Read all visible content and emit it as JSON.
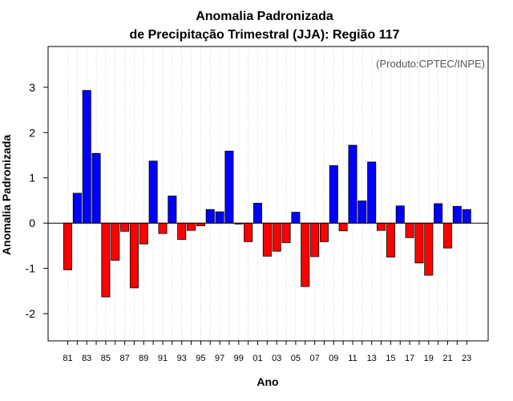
{
  "chart_data": {
    "type": "bar",
    "title_line1": "Anomalia Padronizada",
    "title_line2": "de Precipitação Trimestral (JJA): Região 117",
    "credit": "(Produto:CPTEC/INPE)",
    "xlabel": "Ano",
    "ylabel": "Anomalia Padronizada",
    "ylim": [
      -2.6,
      3.9
    ],
    "yticks": [
      -2,
      -1,
      0,
      1,
      2,
      3
    ],
    "years": [
      "81",
      "82",
      "83",
      "84",
      "85",
      "86",
      "87",
      "88",
      "89",
      "90",
      "91",
      "92",
      "93",
      "94",
      "95",
      "96",
      "97",
      "98",
      "99",
      "00",
      "01",
      "02",
      "03",
      "04",
      "05",
      "06",
      "07",
      "08",
      "09",
      "10",
      "11",
      "12",
      "13",
      "14",
      "15",
      "16",
      "17",
      "18",
      "19",
      "20",
      "21",
      "22",
      "23"
    ],
    "xtick_labels": [
      "81",
      "83",
      "85",
      "87",
      "89",
      "91",
      "93",
      "95",
      "97",
      "99",
      "01",
      "03",
      "05",
      "07",
      "09",
      "11",
      "13",
      "15",
      "17",
      "19",
      "21",
      "23"
    ],
    "values": [
      -1.03,
      0.66,
      2.93,
      1.54,
      -1.63,
      -0.82,
      -0.18,
      -1.43,
      -0.46,
      1.37,
      -0.23,
      0.6,
      -0.36,
      -0.16,
      -0.06,
      0.3,
      0.25,
      1.59,
      -0.02,
      -0.41,
      0.44,
      -0.73,
      -0.62,
      -0.43,
      0.24,
      -1.4,
      -0.74,
      -0.41,
      1.27,
      -0.17,
      1.72,
      0.49,
      1.35,
      -0.16,
      -0.75,
      0.38,
      -0.32,
      -0.88,
      -1.15,
      0.43,
      -0.55,
      0.37,
      0.3
    ],
    "colors": {
      "positive": "#0000ff",
      "negative": "#ff0000",
      "gridline": "#cccccc"
    }
  }
}
